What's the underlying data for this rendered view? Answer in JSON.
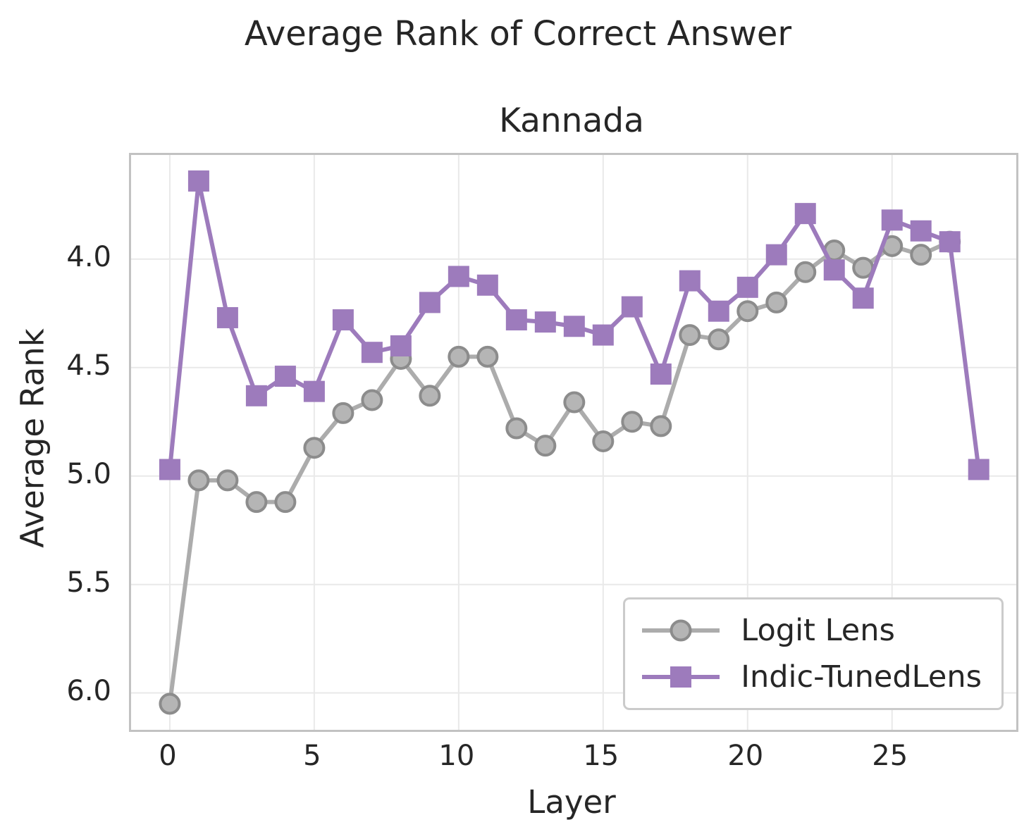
{
  "chart_data": {
    "type": "line",
    "title": "Average Rank of Correct Answer",
    "subtitle": "Kannada",
    "xlabel": "Layer",
    "ylabel": "Average Rank",
    "grid": true,
    "y_axis_inverted": true,
    "xlim": [
      -1.34,
      29.3
    ],
    "ylim": [
      6.17,
      3.52
    ],
    "xticks": [
      0,
      5,
      10,
      15,
      20,
      25
    ],
    "xtick_labels": [
      "0",
      "5",
      "10",
      "15",
      "20",
      "25"
    ],
    "yticks": [
      4.0,
      4.5,
      5.0,
      5.5,
      6.0
    ],
    "ytick_labels": [
      "4.0",
      "4.5",
      "5.0",
      "5.5",
      "6.0"
    ],
    "legend_location": "lower right",
    "series": [
      {
        "name": "Logit Lens",
        "marker": "circle",
        "color": "#acacac",
        "marker_fill": "#b5b5b5",
        "marker_edge": "#8c8c8c",
        "x": [
          0,
          1,
          2,
          3,
          4,
          5,
          6,
          7,
          8,
          9,
          10,
          11,
          12,
          13,
          14,
          15,
          16,
          17,
          18,
          19,
          20,
          21,
          22,
          23,
          24,
          25,
          26,
          27
        ],
        "values": [
          6.05,
          5.02,
          5.02,
          5.12,
          5.12,
          4.87,
          4.71,
          4.65,
          4.46,
          4.63,
          4.45,
          4.45,
          4.78,
          4.86,
          4.66,
          4.84,
          4.75,
          4.77,
          4.35,
          4.37,
          4.24,
          4.2,
          4.06,
          3.96,
          4.04,
          3.94,
          3.98,
          3.92
        ]
      },
      {
        "name": "Indic-TunedLens",
        "marker": "square",
        "color": "#9d7bbc",
        "marker_fill": "#9d7bbc",
        "marker_edge": "#9d7bbc",
        "x": [
          0,
          1,
          2,
          3,
          4,
          5,
          6,
          7,
          8,
          9,
          10,
          11,
          12,
          13,
          14,
          15,
          16,
          17,
          18,
          19,
          20,
          21,
          22,
          23,
          24,
          25,
          26,
          27,
          28
        ],
        "values": [
          4.97,
          3.64,
          4.27,
          4.63,
          4.54,
          4.61,
          4.28,
          4.43,
          4.4,
          4.2,
          4.08,
          4.12,
          4.28,
          4.29,
          4.31,
          4.35,
          4.22,
          4.53,
          4.1,
          4.24,
          4.13,
          3.98,
          3.79,
          4.05,
          4.18,
          3.82,
          3.87,
          3.92,
          4.97
        ]
      }
    ],
    "style": {
      "grid_color": "#e9e9e9",
      "spine_color": "#c2c2c2",
      "text_color": "#262626",
      "background": "#ffffff"
    }
  }
}
